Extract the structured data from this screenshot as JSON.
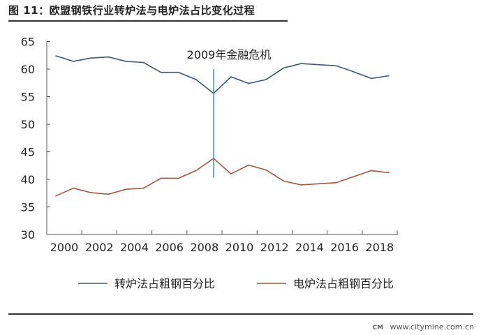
{
  "title": "图 11：欧盟钢铁行业转炉法与电炉法占比变化过程",
  "watermark": {
    "logo": "CM",
    "text": "www.citymine.com.cn"
  },
  "chart_data": {
    "type": "line",
    "title": "图 11：欧盟钢铁行业转炉法与电炉法占比变化过程",
    "xlabel": "",
    "ylabel": "",
    "x": [
      2000,
      2001,
      2002,
      2003,
      2004,
      2005,
      2006,
      2007,
      2008,
      2009,
      2010,
      2011,
      2012,
      2013,
      2014,
      2015,
      2016,
      2017,
      2018,
      2019
    ],
    "xticks": [
      "2000",
      "2002",
      "2004",
      "2006",
      "2008",
      "2010",
      "2012",
      "2014",
      "2016",
      "2018"
    ],
    "yticks": [
      "30",
      "35",
      "40",
      "45",
      "50",
      "55",
      "60",
      "65"
    ],
    "ylim": [
      30,
      65
    ],
    "grid": false,
    "legend": "bottom",
    "series": [
      {
        "name": "转炉法占粗钢百分比",
        "color": "#3d5a73",
        "values": [
          62.4,
          61.4,
          62.0,
          62.2,
          61.4,
          61.2,
          59.4,
          59.4,
          58.1,
          55.6,
          58.6,
          57.4,
          58.1,
          60.2,
          61.0,
          60.8,
          60.6,
          59.5,
          58.3,
          58.8
        ]
      },
      {
        "name": "电炉法占粗钢百分比",
        "color": "#a8553f",
        "values": [
          37.0,
          38.4,
          37.6,
          37.3,
          38.2,
          38.4,
          40.2,
          40.2,
          41.6,
          43.8,
          41.0,
          42.6,
          41.7,
          39.7,
          39.0,
          39.2,
          39.4,
          40.5,
          41.6,
          41.2
        ]
      }
    ],
    "annotations": [
      {
        "text": "2009年金融危机",
        "x": 2009,
        "y_range": [
          40.3,
          60
        ],
        "color": "#3aa899"
      }
    ]
  }
}
